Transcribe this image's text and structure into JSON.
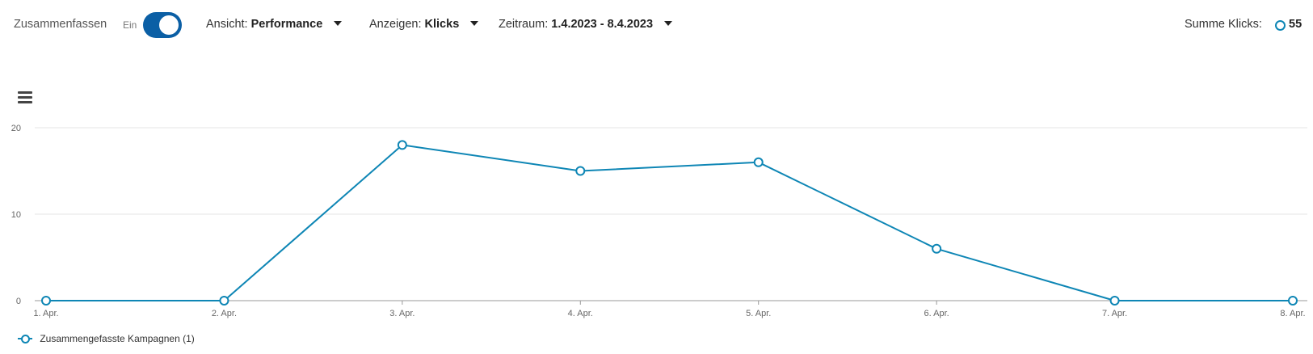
{
  "toolbar": {
    "summarize_label": "Zusammenfassen",
    "toggle_state": "Ein",
    "view_label": "Ansicht:",
    "view_value": "Performance",
    "show_label": "Anzeigen:",
    "show_value": "Klicks",
    "range_label": "Zeitraum:",
    "range_value": "1.4.2023 - 8.4.2023",
    "sum_label": "Summe Klicks:",
    "sum_value": "55"
  },
  "colors": {
    "series": "#0e86b5",
    "toggle": "#0b5fa5",
    "grid": "#e6e6e6",
    "axis": "#999999"
  },
  "icons": {
    "menu": "hamburger-menu-icon",
    "sum": "circle-marker-icon"
  },
  "chart_data": {
    "type": "line",
    "categories": [
      "1. Apr.",
      "2. Apr.",
      "3. Apr.",
      "4. Apr.",
      "5. Apr.",
      "6. Apr.",
      "7. Apr.",
      "8. Apr."
    ],
    "series": [
      {
        "name": "Zusammengefasste Kampagnen (1)",
        "values": [
          0,
          0,
          18,
          15,
          16,
          6,
          0,
          0
        ]
      }
    ],
    "yticks": [
      0,
      10,
      20
    ],
    "ylim": [
      0,
      20
    ],
    "grid": true,
    "legend_position": "bottom-left",
    "title": "",
    "xlabel": "",
    "ylabel": ""
  }
}
